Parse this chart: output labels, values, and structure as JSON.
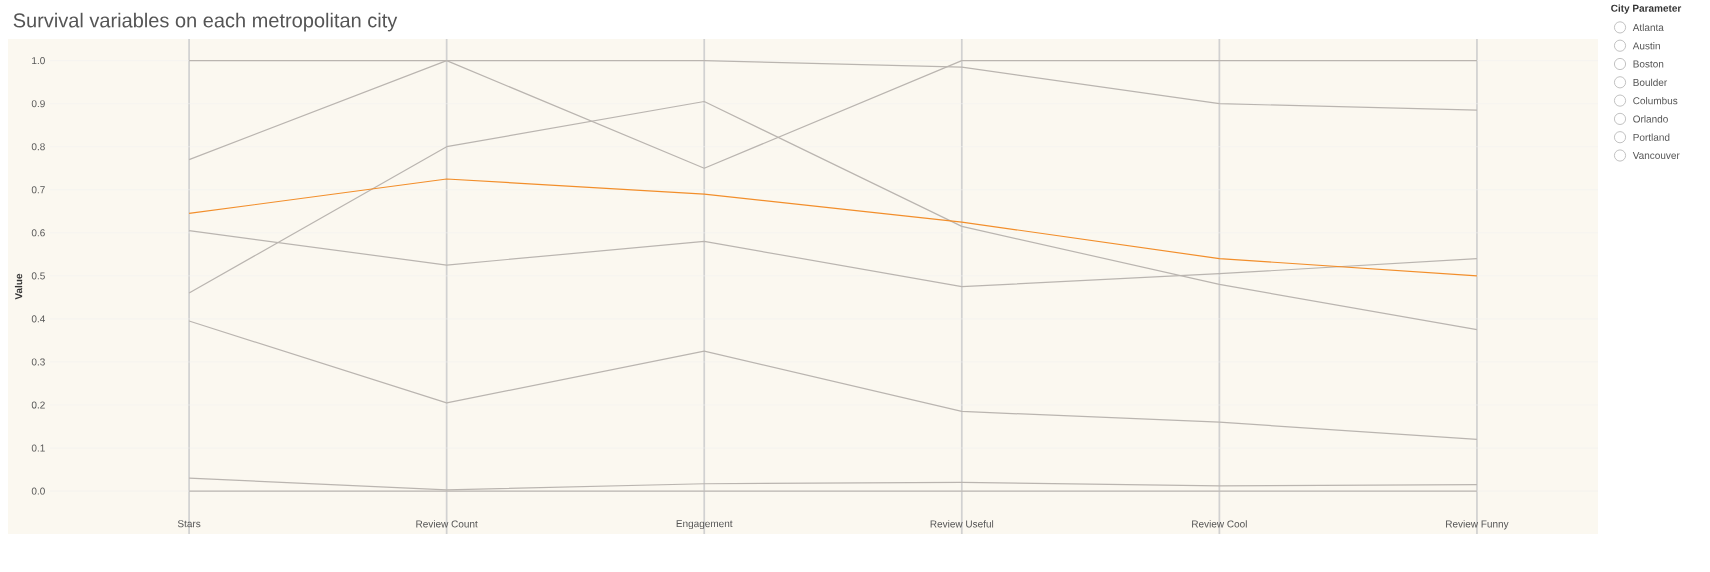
{
  "chart_data": {
    "type": "line",
    "title": "Survival variables on each metropolitan city",
    "ylabel": "Value",
    "categories": [
      "Stars",
      "Review Count",
      "Engagement",
      "Review Useful",
      "Review Cool",
      "Review Funny"
    ],
    "series": [
      {
        "color": "#bab5b0",
        "values": [
          1.0,
          1.0,
          1.0,
          0.985,
          0.9,
          0.885
        ]
      },
      {
        "color": "#bab5b0",
        "values": [
          0.77,
          1.0,
          0.75,
          1.0,
          1.0,
          1.0
        ]
      },
      {
        "color": "#bab5b0",
        "values": [
          0.46,
          0.8,
          0.905,
          0.615,
          0.48,
          0.375
        ]
      },
      {
        "color": "#bab5b0",
        "values": [
          0.605,
          0.525,
          0.58,
          0.475,
          0.505,
          0.54
        ]
      },
      {
        "color": "#bab5b0",
        "values": [
          0.395,
          0.205,
          0.325,
          0.185,
          0.16,
          0.12
        ]
      },
      {
        "color": "#bab5b0",
        "values": [
          0.03,
          0.003,
          0.017,
          0.02,
          0.012,
          0.015
        ]
      },
      {
        "color": "#bab5b0",
        "values": [
          0,
          0,
          0,
          0,
          0,
          0
        ]
      },
      {
        "color": "#f28e2b",
        "values": [
          0.645,
          0.725,
          0.69,
          0.625,
          0.54,
          0.5
        ]
      }
    ],
    "ylim": [
      -0.1,
      1.05
    ],
    "yticks": [
      {
        "value": 0,
        "label": "0.0"
      },
      {
        "value": 0.1,
        "label": "0.1"
      },
      {
        "value": 0.2,
        "label": "0.2"
      },
      {
        "value": 0.3,
        "label": "0.3"
      },
      {
        "value": 0.4,
        "label": "0.4"
      },
      {
        "value": 0.5,
        "label": "0.5"
      },
      {
        "value": 0.6,
        "label": "0.6"
      },
      {
        "value": 0.7,
        "label": "0.7"
      },
      {
        "value": 0.8,
        "label": "0.8"
      },
      {
        "value": 0.9,
        "label": "0.9"
      },
      {
        "value": 1,
        "label": "1.0"
      }
    ],
    "grid": true,
    "marker": "none",
    "line_style": "solid",
    "annotations": [
      "City Parameter",
      "Atlanta",
      "Austin",
      "Boston",
      "Boulder",
      "Columbus",
      "Orlando",
      "Portland",
      "Vancouver"
    ]
  }
}
